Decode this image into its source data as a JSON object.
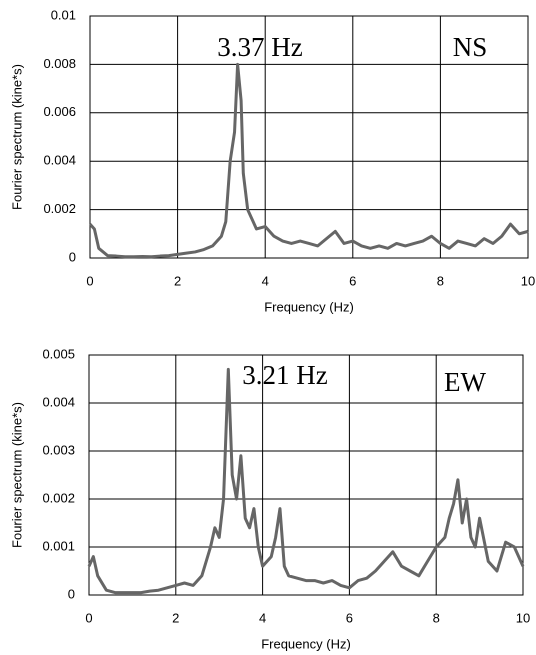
{
  "chart_data": [
    {
      "type": "line",
      "color": "#666666",
      "grid": true,
      "x_label": "Frequency (Hz)",
      "y_label": "Fourier spectrum (kine*s)",
      "annotations": [
        "3.37 Hz",
        "NS"
      ],
      "xlim": [
        0,
        10
      ],
      "xticks": [
        0,
        2,
        4,
        6,
        8,
        10
      ],
      "ylim": [
        0,
        0.01
      ],
      "yticks": [
        0,
        0.002,
        0.004,
        0.006,
        0.008,
        0.01
      ],
      "x": [
        0,
        0.1,
        0.2,
        0.4,
        0.6,
        0.8,
        1,
        1.2,
        1.4,
        1.6,
        1.8,
        2,
        2.2,
        2.4,
        2.6,
        2.8,
        3,
        3.1,
        3.2,
        3.3,
        3.37,
        3.45,
        3.5,
        3.6,
        3.7,
        3.8,
        4,
        4.2,
        4.4,
        4.6,
        4.8,
        5,
        5.2,
        5.4,
        5.6,
        5.8,
        6,
        6.2,
        6.4,
        6.6,
        6.8,
        7,
        7.2,
        7.4,
        7.6,
        7.8,
        8,
        8.2,
        8.4,
        8.6,
        8.8,
        9,
        9.2,
        9.4,
        9.6,
        9.8,
        10
      ],
      "values": [
        0.0014,
        0.0012,
        0.0004,
        0.0001,
        8e-05,
        5e-05,
        5e-05,
        6e-05,
        5e-05,
        8e-05,
        0.0001,
        0.00015,
        0.0002,
        0.00025,
        0.00035,
        0.0005,
        0.0009,
        0.0015,
        0.004,
        0.0052,
        0.008,
        0.0065,
        0.0035,
        0.002,
        0.0016,
        0.0012,
        0.0013,
        0.0009,
        0.0007,
        0.0006,
        0.0007,
        0.0006,
        0.0005,
        0.0008,
        0.0011,
        0.0006,
        0.0007,
        0.0005,
        0.0004,
        0.0005,
        0.0004,
        0.0006,
        0.0005,
        0.0006,
        0.0007,
        0.0009,
        0.0006,
        0.0004,
        0.0007,
        0.0006,
        0.0005,
        0.0008,
        0.0006,
        0.0009,
        0.0014,
        0.001,
        0.0011
      ]
    },
    {
      "type": "line",
      "color": "#666666",
      "grid": true,
      "x_label": "Frequency (Hz)",
      "y_label": "Fourier spectrum (kine*s)",
      "annotations": [
        "3.21 Hz",
        "EW"
      ],
      "xlim": [
        0,
        10
      ],
      "xticks": [
        0,
        2,
        4,
        6,
        8,
        10
      ],
      "ylim": [
        0,
        0.005
      ],
      "yticks": [
        0,
        0.001,
        0.002,
        0.003,
        0.004,
        0.005
      ],
      "x": [
        0,
        0.1,
        0.2,
        0.4,
        0.6,
        0.8,
        1,
        1.2,
        1.4,
        1.6,
        1.8,
        2,
        2.2,
        2.4,
        2.6,
        2.8,
        2.9,
        3,
        3.1,
        3.21,
        3.3,
        3.4,
        3.5,
        3.6,
        3.7,
        3.8,
        3.9,
        4,
        4.2,
        4.3,
        4.4,
        4.5,
        4.6,
        4.8,
        5,
        5.2,
        5.4,
        5.6,
        5.8,
        6,
        6.2,
        6.4,
        6.6,
        6.8,
        7,
        7.2,
        7.4,
        7.6,
        7.8,
        8,
        8.2,
        8.3,
        8.4,
        8.5,
        8.6,
        8.7,
        8.8,
        8.9,
        9,
        9.2,
        9.4,
        9.6,
        9.8,
        10
      ],
      "values": [
        0.0006,
        0.0008,
        0.0004,
        0.0001,
        5e-05,
        5e-05,
        5e-05,
        5e-05,
        8e-05,
        0.0001,
        0.00015,
        0.0002,
        0.00025,
        0.0002,
        0.0004,
        0.001,
        0.0014,
        0.0012,
        0.002,
        0.0047,
        0.0025,
        0.002,
        0.0029,
        0.0016,
        0.0014,
        0.0018,
        0.001,
        0.0006,
        0.0008,
        0.0012,
        0.0018,
        0.0006,
        0.0004,
        0.00035,
        0.0003,
        0.0003,
        0.00025,
        0.0003,
        0.0002,
        0.00015,
        0.0003,
        0.00035,
        0.0005,
        0.0007,
        0.0009,
        0.0006,
        0.0005,
        0.0004,
        0.0007,
        0.001,
        0.0012,
        0.0016,
        0.0019,
        0.0024,
        0.0015,
        0.002,
        0.0012,
        0.001,
        0.0016,
        0.0007,
        0.0005,
        0.0011,
        0.001,
        0.0006
      ]
    }
  ]
}
